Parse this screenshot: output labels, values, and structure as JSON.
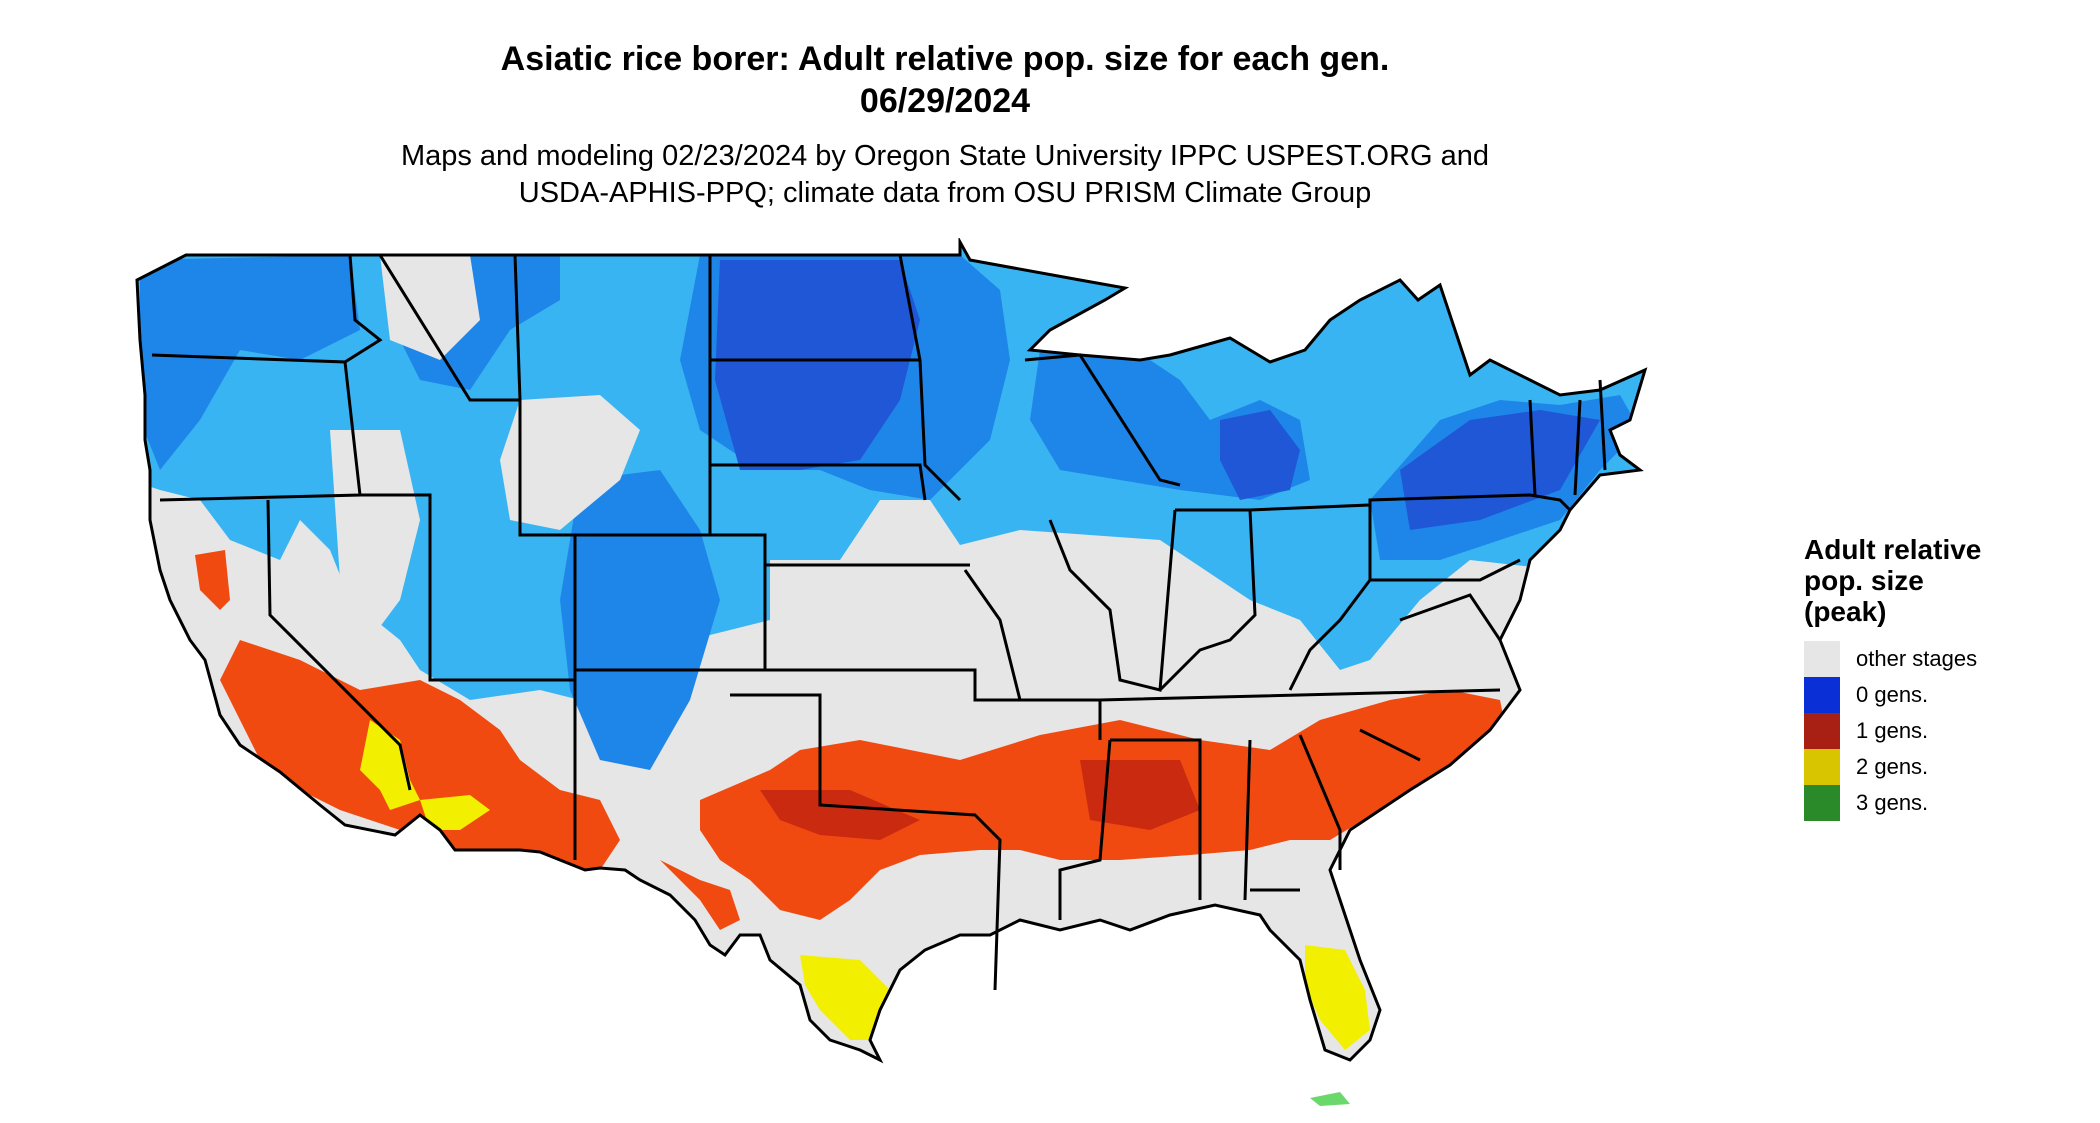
{
  "title": {
    "line1": "Asiatic rice borer: Adult relative pop. size for each gen.",
    "line2": "06/29/2024"
  },
  "subtitle": {
    "line1": "Maps and modeling 02/23/2024 by Oregon State University IPPC USPEST.ORG and",
    "line2": "USDA-APHIS-PPQ; climate data from OSU PRISM Climate Group"
  },
  "legend": {
    "title_lines": [
      "Adult relative",
      "pop. size",
      "(peak)"
    ],
    "items": [
      {
        "label": "other stages",
        "color": "#e6e6e6"
      },
      {
        "label": "0 gens.",
        "color": "#0a2fd6"
      },
      {
        "label": "1 gens.",
        "color": "#a82014"
      },
      {
        "label": "2 gens.",
        "color": "#d9c400"
      },
      {
        "label": "3 gens.",
        "color": "#2a8a2a"
      }
    ]
  },
  "map_colors": {
    "other_stages": "#e6e6e6",
    "blue_light": "#38b4f2",
    "blue_mid": "#1d86e8",
    "blue_dark": "#1f57d6",
    "orange": "#f04a10",
    "orange_dark": "#c92a10",
    "yellow": "#f2f000",
    "green": "#6ad86a",
    "border": "#000000"
  }
}
